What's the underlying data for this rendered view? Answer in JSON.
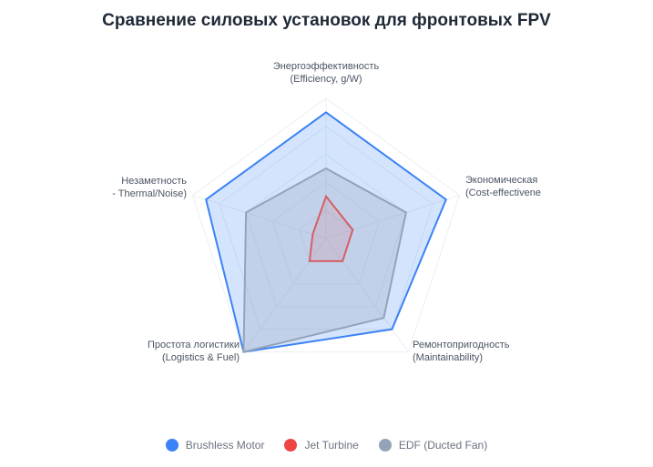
{
  "title": "Сравнение силовых установок для фронтовых FPV",
  "chart_data": {
    "type": "radar",
    "axes": [
      {
        "line1": "Энергоэффективность",
        "line2": "(Efficiency, g/W)"
      },
      {
        "line1": "Экономическая",
        "line2": "(Cost-effectivene"
      },
      {
        "line1": "Ремонтопригодность",
        "line2": "(Maintainability)"
      },
      {
        "line1": "Простота логистики",
        "line2": "(Logistics & Fuel)"
      },
      {
        "line1": "Незаметность",
        "line2": "- Thermal/Noise)"
      }
    ],
    "range": [
      0,
      10
    ],
    "grid": true,
    "legend_position": "bottom",
    "series": [
      {
        "name": "Brushless Motor",
        "color": "#3b82f6",
        "values": [
          9,
          9,
          8,
          10,
          9
        ]
      },
      {
        "name": "Jet Turbine",
        "color": "#ef4444",
        "values": [
          3,
          2,
          2,
          2,
          1
        ]
      },
      {
        "name": "EDF (Ducted Fan)",
        "color": "#94a3b8",
        "values": [
          5,
          6,
          7,
          10,
          6
        ]
      }
    ]
  }
}
